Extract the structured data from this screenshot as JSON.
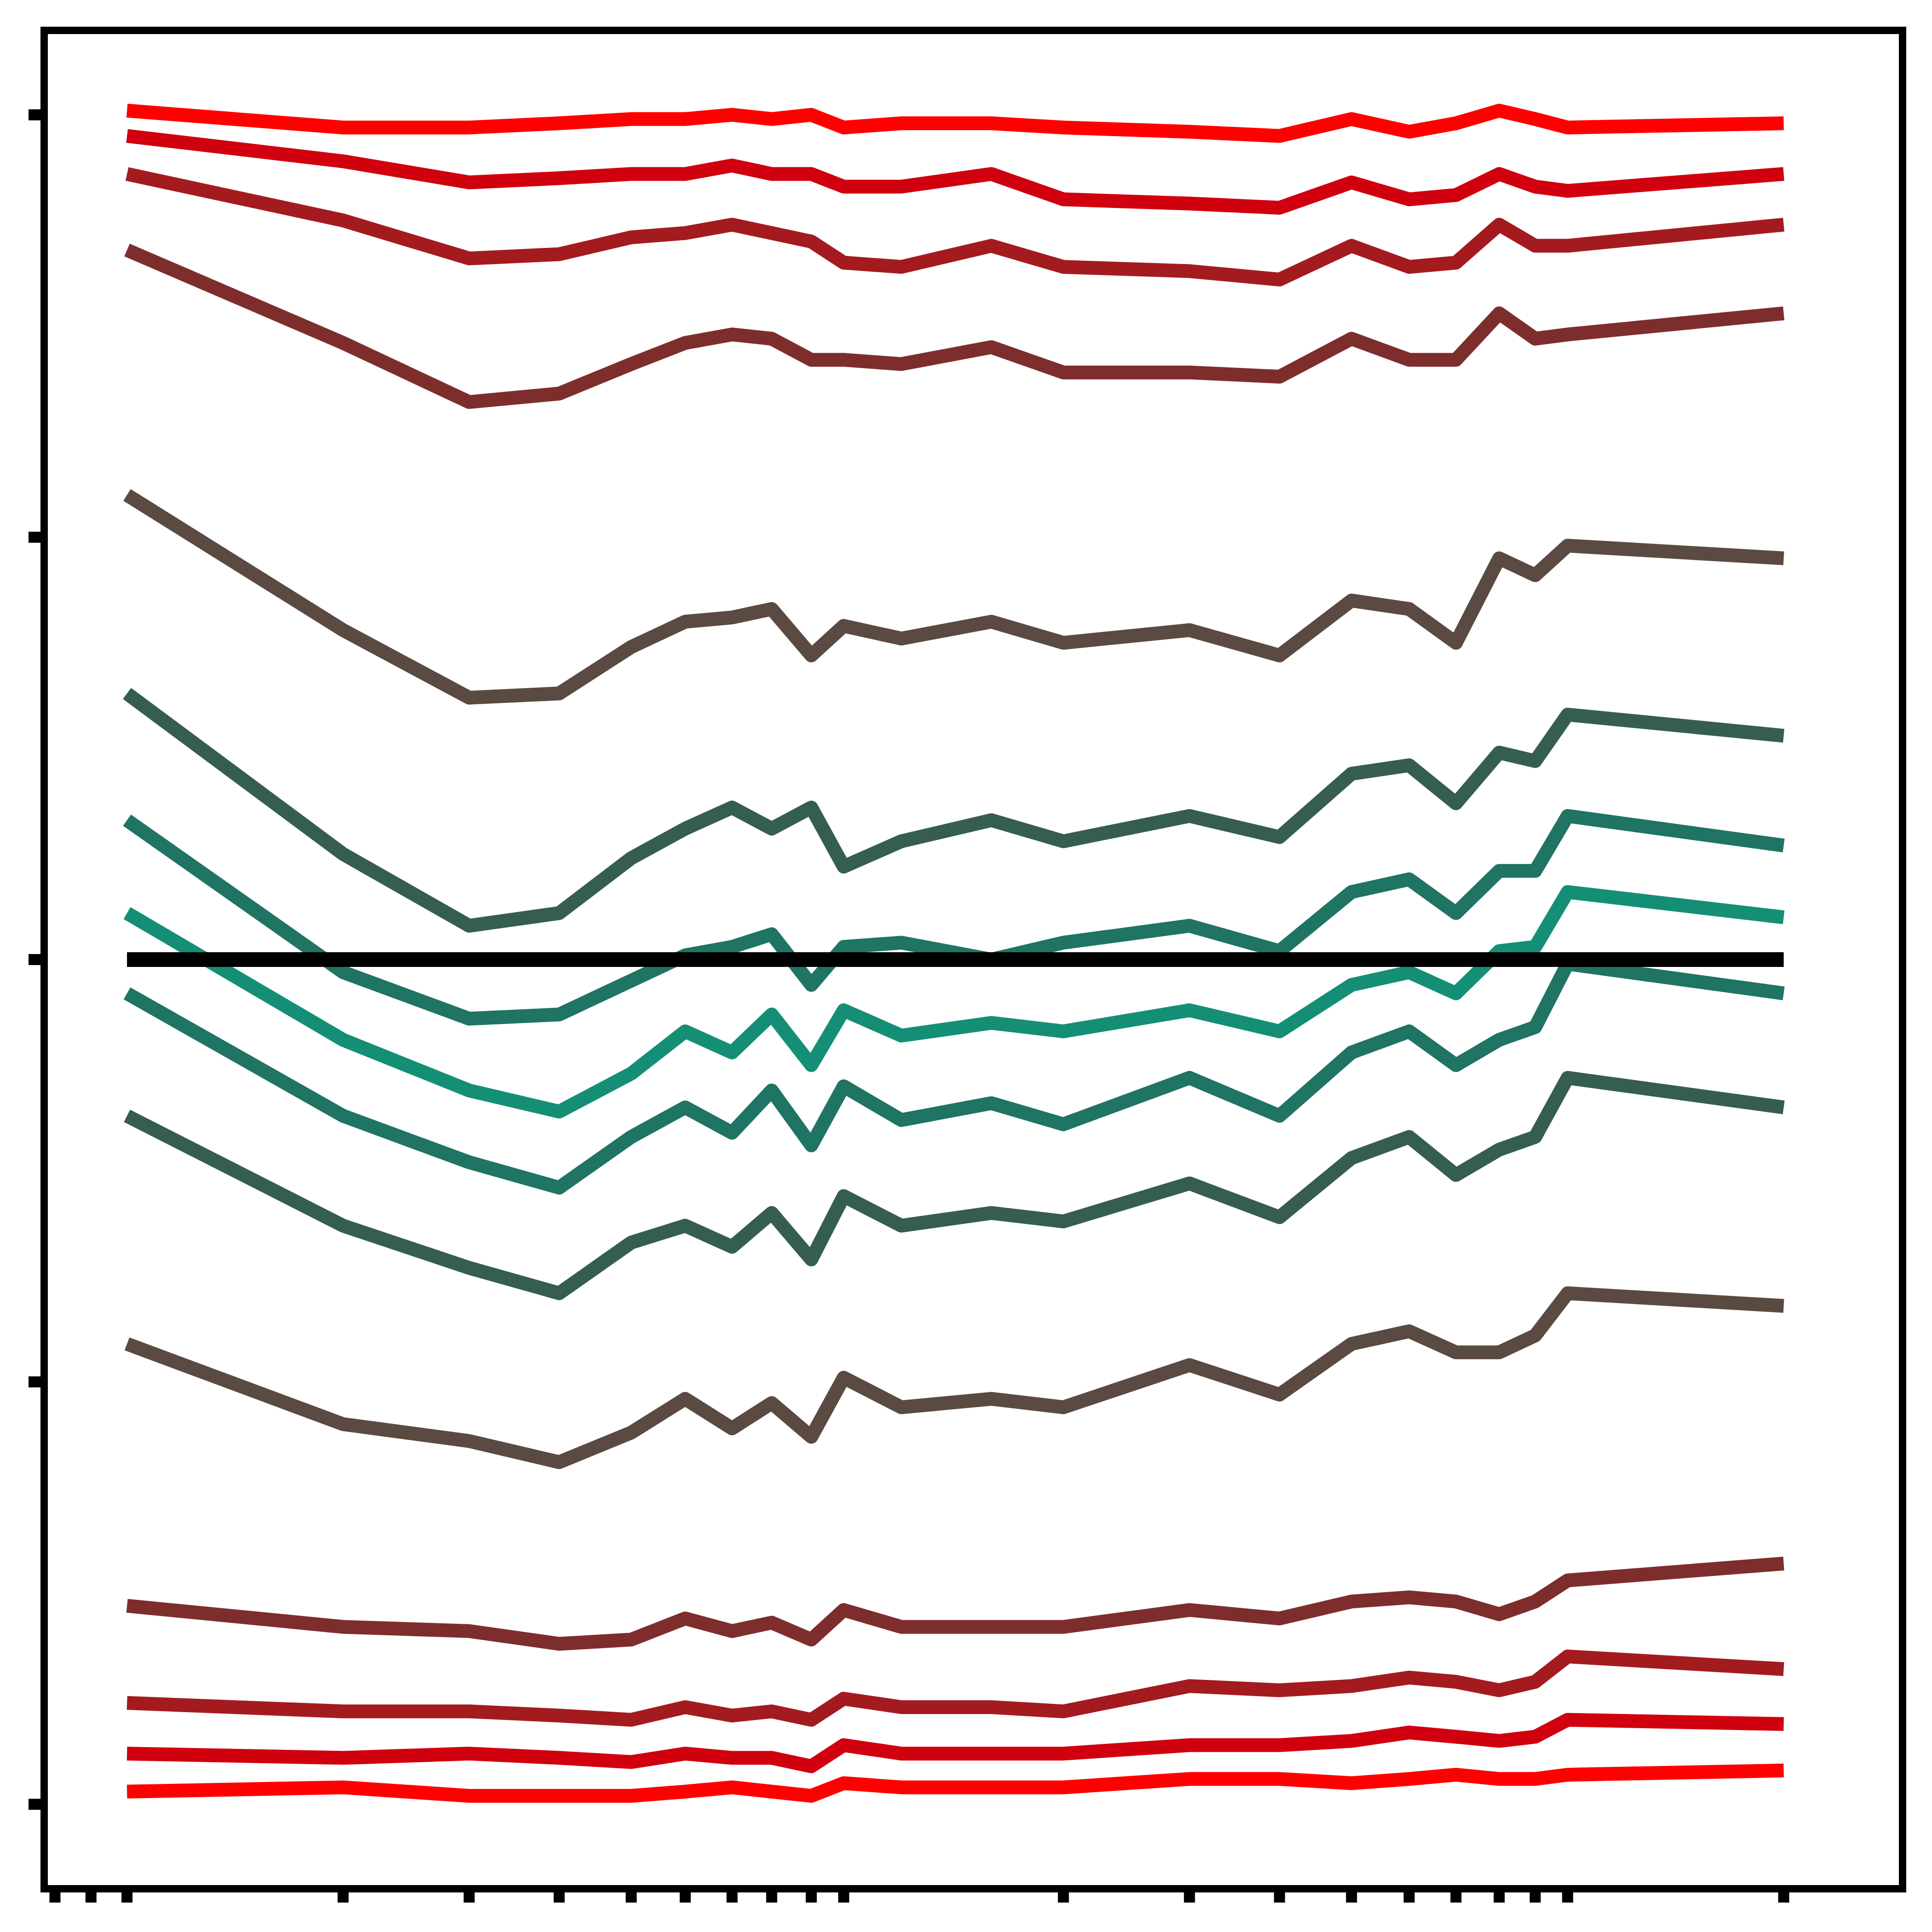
{
  "chart_data": {
    "type": "line",
    "title": "",
    "xlabel": "",
    "ylabel": "",
    "grid": false,
    "legend": "none",
    "tick_labels_visible": false,
    "xlim": [
      -2.3,
      49.3
    ],
    "ylim": [
      -2.2,
      2.2
    ],
    "x": [
      0,
      6,
      9.5,
      12,
      14,
      15.5,
      16.8,
      17.9,
      19,
      19.9,
      21.5,
      24,
      26,
      29.5,
      32,
      34,
      35.6,
      36.9,
      38.1,
      39.1,
      40,
      46
    ],
    "x_ticks": [
      -2,
      -1,
      0,
      6,
      9.5,
      12,
      14,
      15.5,
      16.8,
      17.9,
      19,
      19.9,
      26,
      29.5,
      32,
      34,
      35.6,
      36.9,
      38.1,
      39.1,
      40,
      46
    ],
    "y_ticks": [
      -2,
      -1,
      0,
      1,
      2
    ],
    "zero_line": 0,
    "series": [
      {
        "name": "series-1",
        "color": "#ff0000",
        "values": [
          2.01,
          1.97,
          1.97,
          1.98,
          1.99,
          1.99,
          2.0,
          1.99,
          2.0,
          1.97,
          1.98,
          1.98,
          1.97,
          1.96,
          1.95,
          1.99,
          1.96,
          1.98,
          2.01,
          1.99,
          1.97,
          1.98
        ]
      },
      {
        "name": "series-2",
        "color": "#d0000f",
        "values": [
          1.95,
          1.89,
          1.84,
          1.85,
          1.86,
          1.86,
          1.88,
          1.86,
          1.86,
          1.83,
          1.83,
          1.86,
          1.8,
          1.79,
          1.78,
          1.84,
          1.8,
          1.81,
          1.86,
          1.83,
          1.82,
          1.86
        ]
      },
      {
        "name": "series-3",
        "color": "#a41b1f",
        "values": [
          1.86,
          1.75,
          1.66,
          1.67,
          1.71,
          1.72,
          1.74,
          1.72,
          1.7,
          1.65,
          1.64,
          1.69,
          1.64,
          1.63,
          1.61,
          1.69,
          1.64,
          1.65,
          1.74,
          1.69,
          1.69,
          1.74
        ]
      },
      {
        "name": "series-4",
        "color": "#7d2e2c",
        "values": [
          1.68,
          1.46,
          1.32,
          1.34,
          1.41,
          1.46,
          1.48,
          1.47,
          1.42,
          1.42,
          1.41,
          1.45,
          1.39,
          1.39,
          1.38,
          1.47,
          1.42,
          1.42,
          1.53,
          1.47,
          1.48,
          1.53
        ]
      },
      {
        "name": "series-5",
        "color": "#5a4a41",
        "values": [
          1.1,
          0.78,
          0.62,
          0.63,
          0.74,
          0.8,
          0.81,
          0.83,
          0.72,
          0.79,
          0.76,
          0.8,
          0.75,
          0.78,
          0.72,
          0.85,
          0.83,
          0.75,
          0.95,
          0.91,
          0.98,
          0.95
        ]
      },
      {
        "name": "series-6",
        "color": "#355e4f",
        "values": [
          0.63,
          0.25,
          0.08,
          0.11,
          0.24,
          0.31,
          0.36,
          0.31,
          0.36,
          0.22,
          0.28,
          0.33,
          0.28,
          0.34,
          0.29,
          0.44,
          0.46,
          0.37,
          0.49,
          0.47,
          0.58,
          0.53
        ]
      },
      {
        "name": "series-7",
        "color": "#1f7463",
        "values": [
          0.33,
          -0.03,
          -0.14,
          -0.13,
          -0.05,
          0.01,
          0.03,
          0.06,
          -0.06,
          0.03,
          0.04,
          0.0,
          0.04,
          0.08,
          0.02,
          0.16,
          0.19,
          0.11,
          0.21,
          0.21,
          0.34,
          0.27
        ]
      },
      {
        "name": "series-8",
        "color": "#148f76",
        "values": [
          0.11,
          -0.19,
          -0.31,
          -0.36,
          -0.27,
          -0.17,
          -0.22,
          -0.13,
          -0.25,
          -0.12,
          -0.18,
          -0.15,
          -0.17,
          -0.12,
          -0.17,
          -0.06,
          -0.03,
          -0.08,
          0.02,
          0.03,
          0.16,
          0.1
        ]
      },
      {
        "name": "series-9",
        "color": "#1f7463",
        "values": [
          -0.08,
          -0.37,
          -0.48,
          -0.54,
          -0.42,
          -0.35,
          -0.41,
          -0.31,
          -0.44,
          -0.3,
          -0.38,
          -0.34,
          -0.39,
          -0.28,
          -0.37,
          -0.22,
          -0.17,
          -0.25,
          -0.19,
          -0.16,
          -0.01,
          -0.08
        ]
      },
      {
        "name": "series-10",
        "color": "#355e4f",
        "values": [
          -0.37,
          -0.63,
          -0.73,
          -0.79,
          -0.67,
          -0.63,
          -0.68,
          -0.6,
          -0.71,
          -0.56,
          -0.63,
          -0.6,
          -0.62,
          -0.53,
          -0.61,
          -0.47,
          -0.42,
          -0.51,
          -0.45,
          -0.42,
          -0.28,
          -0.35
        ]
      },
      {
        "name": "series-11",
        "color": "#5a4a41",
        "values": [
          -0.91,
          -1.1,
          -1.14,
          -1.19,
          -1.12,
          -1.04,
          -1.11,
          -1.05,
          -1.13,
          -0.99,
          -1.06,
          -1.04,
          -1.06,
          -0.96,
          -1.03,
          -0.91,
          -0.88,
          -0.93,
          -0.93,
          -0.89,
          -0.79,
          -0.82
        ]
      },
      {
        "name": "series-12",
        "color": "#7d2e2c",
        "values": [
          -1.53,
          -1.58,
          -1.59,
          -1.62,
          -1.61,
          -1.56,
          -1.59,
          -1.57,
          -1.61,
          -1.54,
          -1.58,
          -1.58,
          -1.58,
          -1.54,
          -1.56,
          -1.52,
          -1.51,
          -1.52,
          -1.55,
          -1.52,
          -1.47,
          -1.43
        ]
      },
      {
        "name": "series-13",
        "color": "#a41b1f",
        "values": [
          -1.76,
          -1.78,
          -1.78,
          -1.79,
          -1.8,
          -1.77,
          -1.79,
          -1.78,
          -1.8,
          -1.75,
          -1.77,
          -1.77,
          -1.78,
          -1.72,
          -1.73,
          -1.72,
          -1.7,
          -1.71,
          -1.73,
          -1.71,
          -1.65,
          -1.68
        ]
      },
      {
        "name": "series-14",
        "color": "#d0000f",
        "values": [
          -1.88,
          -1.89,
          -1.88,
          -1.89,
          -1.9,
          -1.88,
          -1.89,
          -1.89,
          -1.91,
          -1.86,
          -1.88,
          -1.88,
          -1.88,
          -1.86,
          -1.86,
          -1.85,
          -1.83,
          -1.84,
          -1.85,
          -1.84,
          -1.8,
          -1.81
        ]
      },
      {
        "name": "series-15",
        "color": "#ff0000",
        "values": [
          -1.97,
          -1.96,
          -1.98,
          -1.98,
          -1.98,
          -1.97,
          -1.96,
          -1.97,
          -1.98,
          -1.95,
          -1.96,
          -1.96,
          -1.96,
          -1.94,
          -1.94,
          -1.95,
          -1.94,
          -1.93,
          -1.94,
          -1.94,
          -1.93,
          -1.92
        ]
      }
    ]
  }
}
